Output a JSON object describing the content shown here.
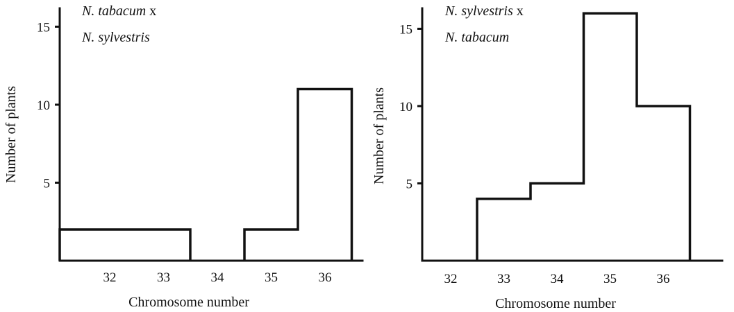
{
  "chart_data": [
    {
      "type": "bar",
      "title_line1_italic": "N. tabacum",
      "title_line1_suffix": " x",
      "title_line2_italic": "N. sylvestris",
      "xlabel": "Chromosome number",
      "ylabel": "Number of plants",
      "categories": [
        "32",
        "33",
        "34",
        "35",
        "36"
      ],
      "x": [
        32,
        33,
        34,
        35,
        36
      ],
      "values": [
        2,
        2,
        0,
        2,
        11
      ],
      "yticks": [
        "5",
        "10",
        "15"
      ],
      "ylim": [
        0,
        16
      ],
      "grid": false
    },
    {
      "type": "bar",
      "title_line1_italic": "N. sylvestris",
      "title_line1_suffix": " x",
      "title_line2_italic": "N. tabacum",
      "xlabel": "Chromosome number",
      "ylabel": "Number of plants",
      "categories": [
        "32",
        "33",
        "34",
        "35",
        "36"
      ],
      "x": [
        32,
        33,
        34,
        35,
        36
      ],
      "values": [
        0,
        4,
        5,
        16,
        10
      ],
      "yticks": [
        "5",
        "10",
        "15"
      ],
      "ylim": [
        0,
        16
      ],
      "grid": false
    }
  ]
}
